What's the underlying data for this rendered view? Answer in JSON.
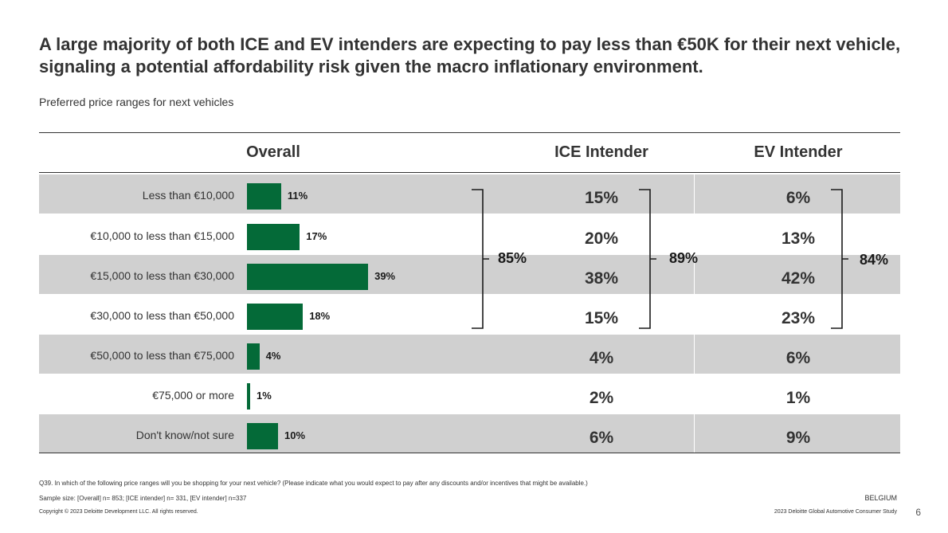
{
  "header": {
    "title": "A large majority of both ICE and EV intenders are expecting to pay less than €50K for their next vehicle, signaling a potential affordability risk given the macro inflationary environment.",
    "subtitle": "Preferred price ranges for next vehicles"
  },
  "columns": {
    "overall": "Overall",
    "ice": "ICE Intender",
    "ev": "EV Intender"
  },
  "chart_data": {
    "type": "bar",
    "orientation": "horizontal",
    "title": "Preferred price ranges for next vehicles",
    "categories": [
      "Less than €10,000",
      "€10,000 to less than €15,000",
      "€15,000 to less than €30,000",
      "€30,000 to less than €50,000",
      "€50,000 to less than €75,000",
      "€75,000 or more",
      "Don't know/not sure"
    ],
    "series": [
      {
        "name": "Overall",
        "values": [
          11,
          17,
          39,
          18,
          4,
          1,
          10
        ],
        "labels": [
          "11%",
          "17%",
          "39%",
          "18%",
          "4%",
          "1%",
          "10%"
        ]
      },
      {
        "name": "ICE Intender",
        "values": [
          15,
          20,
          38,
          15,
          4,
          2,
          6
        ],
        "labels": [
          "15%",
          "20%",
          "38%",
          "15%",
          "4%",
          "2%",
          "6%"
        ]
      },
      {
        "name": "EV Intender",
        "values": [
          6,
          13,
          42,
          23,
          6,
          1,
          9
        ],
        "labels": [
          "6%",
          "13%",
          "42%",
          "23%",
          "6%",
          "1%",
          "9%"
        ]
      }
    ],
    "bracket_totals": {
      "overall": "85%",
      "ice": "89%",
      "ev": "84%"
    },
    "xlim": [
      0,
      100
    ],
    "bar_color": "#046a38"
  },
  "footer": {
    "question": "Q39. In which of the following price ranges will you be shopping for your next vehicle? (Please indicate what you would expect to pay after any discounts and/or incentives that might be available.)",
    "sample": "Sample size: [Overall] n= 853; [ICE intender] n= 331, [EV intender] n=337",
    "copyright": "Copyright © 2023 Deloitte Development LLC. All rights reserved.",
    "country": "BELGIUM",
    "study": "2023 Deloitte Global Automotive Consumer Study",
    "page": "6"
  },
  "colors": {
    "band": "#d0d0d0",
    "bar": "#046a38",
    "text": "#333333"
  }
}
